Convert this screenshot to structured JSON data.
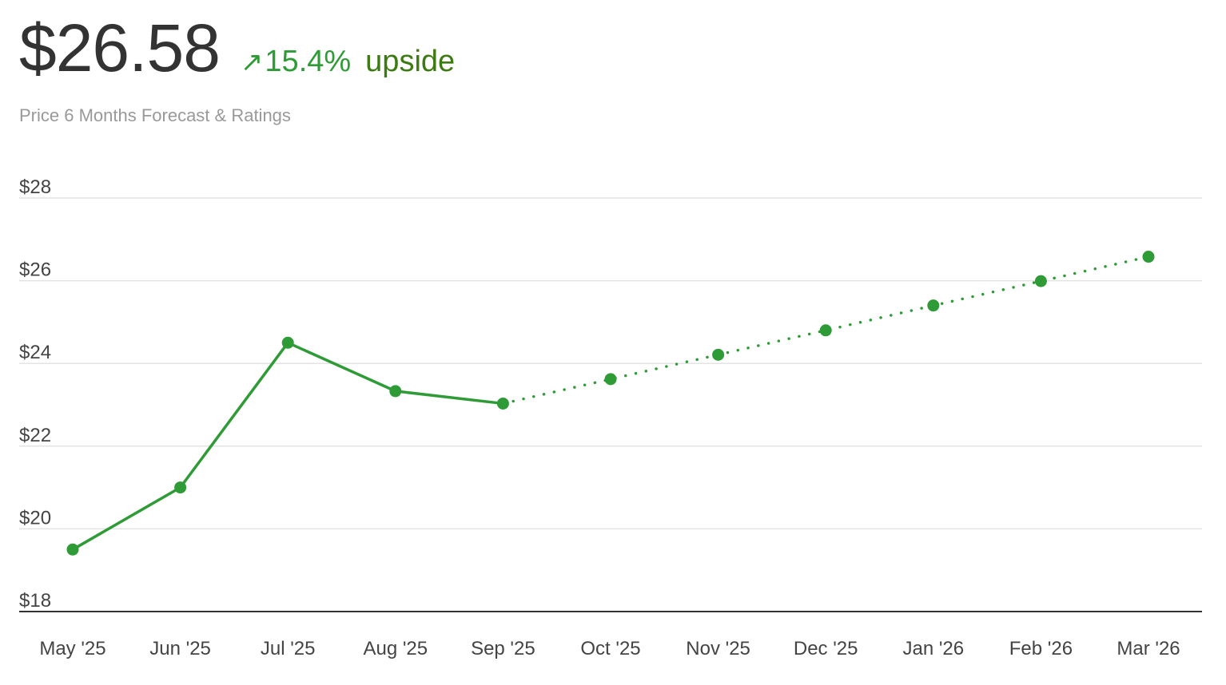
{
  "header": {
    "price": "$26.58",
    "change_icon": "arrow-up-right-icon",
    "change_pct": "15.4%",
    "change_word": "upside",
    "subtitle": "Price 6 Months Forecast & Ratings"
  },
  "colors": {
    "line": "#2e9b36",
    "grid": "#e3e3e3",
    "axis": "#333333"
  },
  "chart_data": {
    "type": "line",
    "categories": [
      "May '25",
      "Jun '25",
      "Jul '25",
      "Aug '25",
      "Sep '25",
      "Oct '25",
      "Nov '25",
      "Dec '25",
      "Jan '26",
      "Feb '26",
      "Mar '26"
    ],
    "ylim": [
      18,
      28
    ],
    "yticks": [
      18,
      20,
      22,
      24,
      26,
      28
    ],
    "ytick_labels": [
      "$18",
      "$20",
      "$22",
      "$24",
      "$26",
      "$28"
    ],
    "grid": true,
    "series": [
      {
        "style": "solid",
        "x": [
          "May '25",
          "Jun '25",
          "Jul '25",
          "Aug '25",
          "Sep '25"
        ],
        "values": [
          19.5,
          21.0,
          24.5,
          23.33,
          23.03
        ]
      },
      {
        "style": "dotted",
        "x": [
          "Sep '25",
          "Oct '25",
          "Nov '25",
          "Dec '25",
          "Jan '26",
          "Feb '26",
          "Mar '26"
        ],
        "values": [
          23.03,
          23.62,
          24.21,
          24.8,
          25.4,
          25.99,
          26.58
        ]
      }
    ]
  }
}
